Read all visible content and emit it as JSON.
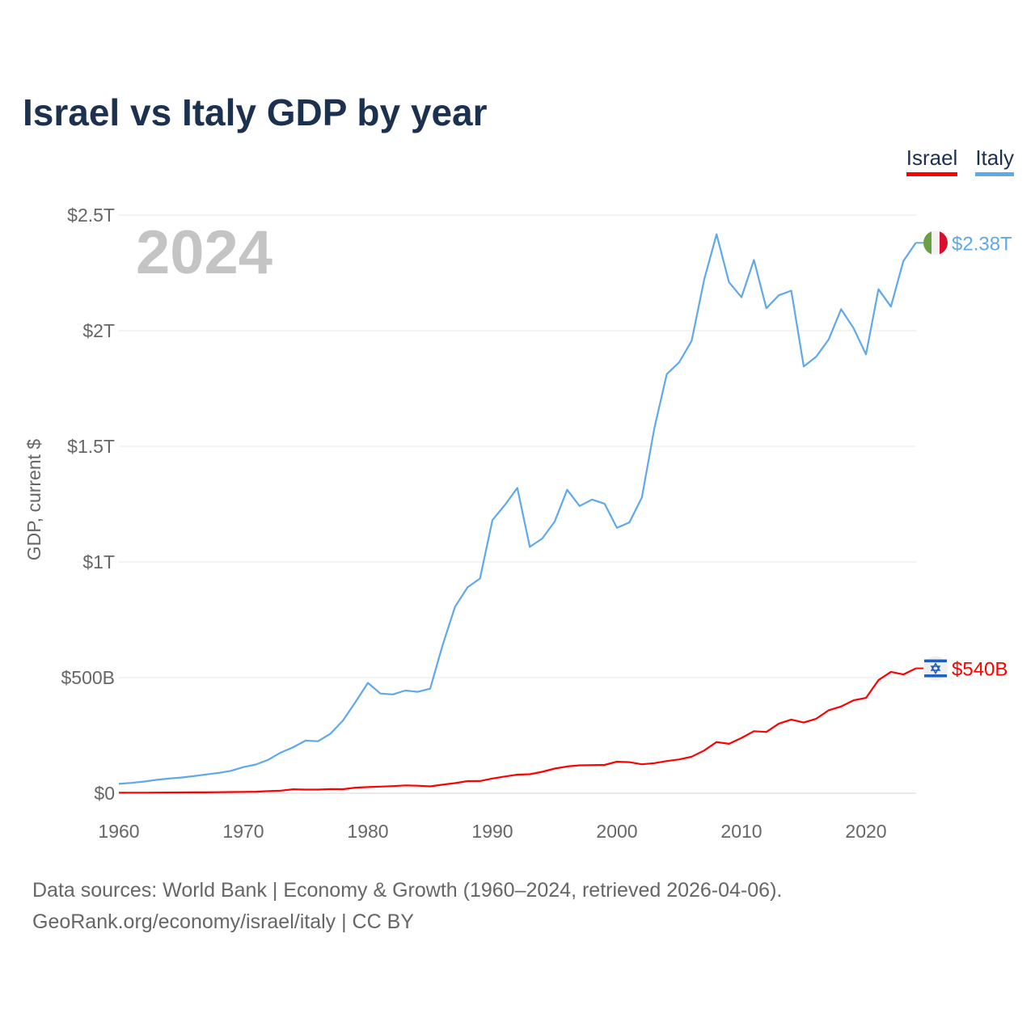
{
  "chart_data": {
    "type": "line",
    "title": "Israel vs Italy GDP by year",
    "xlabel": "",
    "ylabel": "GDP, current $",
    "year_watermark": "2024",
    "xlim": [
      1960,
      2024
    ],
    "ylim": [
      0,
      2500
    ],
    "value_unit": "billions USD",
    "x_ticks": [
      1960,
      1970,
      1980,
      1990,
      2000,
      2010,
      2020
    ],
    "y_ticks": [
      {
        "value": 0,
        "label": "$0"
      },
      {
        "value": 500,
        "label": "$500B"
      },
      {
        "value": 1000,
        "label": "$1T"
      },
      {
        "value": 1500,
        "label": "$1.5T"
      },
      {
        "value": 2000,
        "label": "$2T"
      },
      {
        "value": 2500,
        "label": "$2.5T"
      }
    ],
    "grid": true,
    "legend_placement": "top-right",
    "x": [
      1960,
      1961,
      1962,
      1963,
      1964,
      1965,
      1966,
      1967,
      1968,
      1969,
      1970,
      1971,
      1972,
      1973,
      1974,
      1975,
      1976,
      1977,
      1978,
      1979,
      1980,
      1981,
      1982,
      1983,
      1984,
      1985,
      1986,
      1987,
      1988,
      1989,
      1990,
      1991,
      1992,
      1993,
      1994,
      1995,
      1996,
      1997,
      1998,
      1999,
      2000,
      2001,
      2002,
      2003,
      2004,
      2005,
      2006,
      2007,
      2008,
      2009,
      2010,
      2011,
      2012,
      2013,
      2014,
      2015,
      2016,
      2017,
      2018,
      2019,
      2020,
      2021,
      2022,
      2023,
      2024
    ],
    "series": [
      {
        "name": "Israel",
        "color": "#ff0000",
        "end_label": "$540B",
        "flag": "israel-flag",
        "values": [
          2.0,
          2.3,
          2.3,
          2.7,
          3.1,
          3.6,
          3.8,
          4.0,
          4.7,
          5.3,
          5.8,
          6.5,
          9.0,
          11.3,
          17.1,
          15.6,
          15.6,
          18.2,
          17.6,
          24.3,
          26.6,
          28.5,
          30.7,
          33.8,
          32.6,
          29.8,
          37.2,
          43.6,
          52.5,
          52.9,
          63.6,
          72.4,
          80.3,
          82.0,
          92.5,
          106.5,
          115.9,
          120.6,
          121.7,
          122.5,
          136.3,
          134.1,
          125.1,
          130.1,
          139.1,
          146.1,
          157.9,
          184.6,
          221.5,
          213.7,
          239.3,
          268.1,
          265.2,
          300.9,
          318.4,
          305.6,
          322.0,
          358.9,
          375.2,
          401.7,
          412.2,
          489.2,
          525.0,
          513.7,
          540.0
        ]
      },
      {
        "name": "Italy",
        "color": "#5ea8ec",
        "end_label": "$2.38T",
        "flag": "italy-flag",
        "values": [
          40.4,
          44.8,
          50.4,
          57.7,
          63.2,
          68.0,
          73.7,
          81.2,
          87.9,
          97.0,
          113.0,
          124.3,
          144.8,
          175.8,
          199.1,
          227.7,
          224.9,
          257.6,
          314.6,
          394.0,
          477.3,
          431.2,
          427.1,
          444.2,
          438.3,
          452.1,
          640.4,
          806.7,
          890.1,
          928.3,
          1181.2,
          1246.6,
          1320.2,
          1065.0,
          1101.4,
          1174.7,
          1312.2,
          1242.1,
          1270.0,
          1252.0,
          1147.6,
          1171.0,
          1278.5,
          1577.4,
          1812.4,
          1863.7,
          1956.7,
          2219.9,
          2417.2,
          2209.3,
          2144.9,
          2306.0,
          2097.2,
          2153.3,
          2173.1,
          1845.4,
          1887.9,
          1961.8,
          2092.9,
          2011.3,
          1897.5,
          2179.2,
          2104.3,
          2300.9,
          2380.0
        ]
      }
    ]
  },
  "footer": {
    "source_line": "Data sources: World Bank | Economy & Growth (1960–2024, retrieved 2026-04-06).",
    "credit_line": "GeoRank.org/economy/israel/italy | CC BY"
  }
}
